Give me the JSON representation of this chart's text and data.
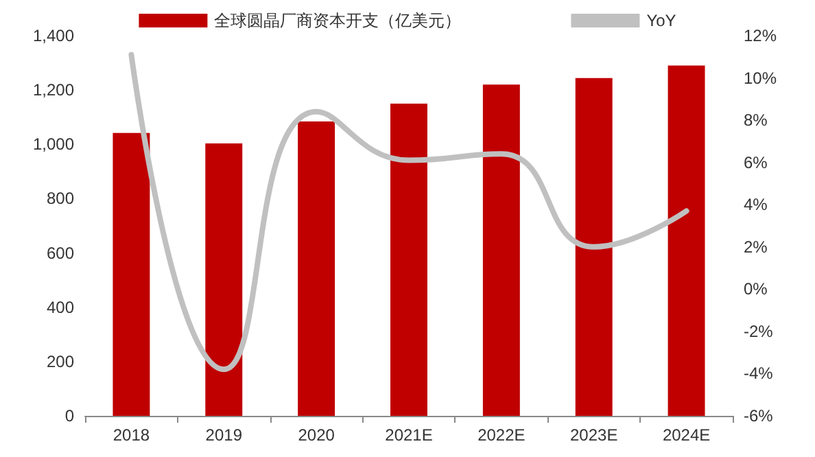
{
  "chart_data": {
    "type": "bar",
    "categories": [
      "2018",
      "2019",
      "2020",
      "2021E",
      "2022E",
      "2023E",
      "2024E"
    ],
    "series": [
      {
        "name": "全球圆晶厂商资本开支（亿美元）",
        "color": "#c00000",
        "values": [
          1042,
          1003,
          1084,
          1150,
          1220,
          1244,
          1290
        ]
      },
      {
        "name": "YoY",
        "type": "line",
        "axis": "y2",
        "color": "#c0c0c0",
        "values": [
          11.1,
          -3.8,
          8.4,
          6.1,
          6.4,
          2.0,
          3.7
        ]
      }
    ],
    "ylim": [
      0,
      1400
    ],
    "yticks": [
      0,
      200,
      400,
      600,
      800,
      {
        "value": 1000,
        "label": "1,000"
      },
      {
        "value": 1200,
        "label": "1,200"
      },
      {
        "value": 1400,
        "label": "1,400"
      }
    ],
    "y2lim": [
      -6,
      12
    ],
    "y2ticks": [
      {
        "value": -6,
        "label": "-6%"
      },
      {
        "value": -4,
        "label": "-4%"
      },
      {
        "value": -2,
        "label": "-2%"
      },
      {
        "value": 0,
        "label": "0%"
      },
      {
        "value": 2,
        "label": "2%"
      },
      {
        "value": 4,
        "label": "4%"
      },
      {
        "value": 6,
        "label": "6%"
      },
      {
        "value": 8,
        "label": "8%"
      },
      {
        "value": 10,
        "label": "10%"
      },
      {
        "value": 12,
        "label": "12%"
      }
    ],
    "grid": false,
    "legend": "top",
    "marker": "none",
    "line_style": "solid"
  }
}
